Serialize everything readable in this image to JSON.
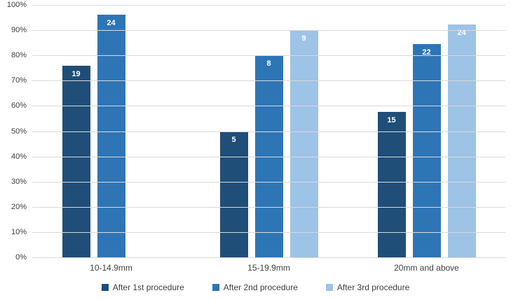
{
  "chart_data": {
    "type": "bar",
    "title": "",
    "xlabel": "",
    "ylabel": "",
    "ylim": [
      0,
      100
    ],
    "grid": true,
    "legend_position": "bottom",
    "yticks": [
      "100%",
      "90%",
      "80%",
      "70%",
      "60%",
      "50%",
      "40%",
      "30%",
      "20%",
      "10%",
      "0%"
    ],
    "categories": [
      "10-14.9mm",
      "15-19.9mm",
      "20mm and above"
    ],
    "series": [
      {
        "name": "After 1st procedure",
        "color": "#1F4E79",
        "percents": [
          76,
          50,
          57.7
        ],
        "bar_labels": [
          "19",
          "5",
          "15"
        ]
      },
      {
        "name": "After 2nd procedure",
        "color": "#2E75B6",
        "percents": [
          96,
          80,
          84.6
        ],
        "bar_labels": [
          "24",
          "8",
          "22"
        ]
      },
      {
        "name": "After 3rd procedure",
        "color": "#9DC3E6",
        "percents": [
          null,
          90,
          92.3
        ],
        "bar_labels": [
          "",
          "9",
          "24"
        ]
      }
    ],
    "colors": {
      "gridline": "#d9d9d9",
      "axis_text": "#404040",
      "bar_label_text": "#ffffff"
    }
  }
}
